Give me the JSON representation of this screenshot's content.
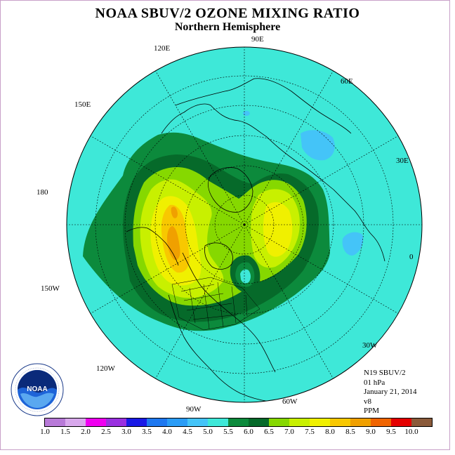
{
  "header": {
    "title": "NOAA SBUV/2 OZONE MIXING RATIO",
    "subtitle": "Northern Hemisphere"
  },
  "longitude_labels": [
    "90E",
    "60E",
    "120E",
    "150E",
    "30E",
    "180",
    "0",
    "150W",
    "30W",
    "120W",
    "60W",
    "90W"
  ],
  "info": {
    "instrument": "N19 SBUV/2",
    "level": "01 hPa",
    "date": "January 21, 2014",
    "version": "v8",
    "units": "PPM"
  },
  "logo": {
    "name": "NOAA",
    "ring_text": "NATIONAL OCEANIC AND ATMOSPHERIC ADMINISTRATION · U.S. DEPARTMENT OF COMMERCE"
  },
  "colorbar": {
    "ticks": [
      "1.0",
      "1.5",
      "2.0",
      "2.5",
      "3.0",
      "3.5",
      "4.0",
      "4.5",
      "5.0",
      "5.5",
      "6.0",
      "6.5",
      "7.0",
      "7.5",
      "8.0",
      "8.5",
      "9.0",
      "9.5",
      "10.0"
    ],
    "colors": [
      "#b87ad8",
      "#d8a8ec",
      "#f000f0",
      "#9a30e0",
      "#1a1ae6",
      "#1e78f0",
      "#2a9cf6",
      "#44c4f8",
      "#3ee8d8",
      "#0c8a3c",
      "#066a2a",
      "#86d800",
      "#c8f000",
      "#f0f000",
      "#f8c800",
      "#f0a000",
      "#f06400",
      "#e40000",
      "#8a5a3a"
    ]
  },
  "map_colors": {
    "background": "#3ee8d8",
    "low": "#44c4f8",
    "green_1": "#0c8a3c",
    "green_2": "#066a2a",
    "lime_1": "#86d800",
    "lime_2": "#c8f000",
    "yellow": "#f0f000",
    "orange_1": "#f8c800",
    "orange_2": "#f0a000"
  }
}
